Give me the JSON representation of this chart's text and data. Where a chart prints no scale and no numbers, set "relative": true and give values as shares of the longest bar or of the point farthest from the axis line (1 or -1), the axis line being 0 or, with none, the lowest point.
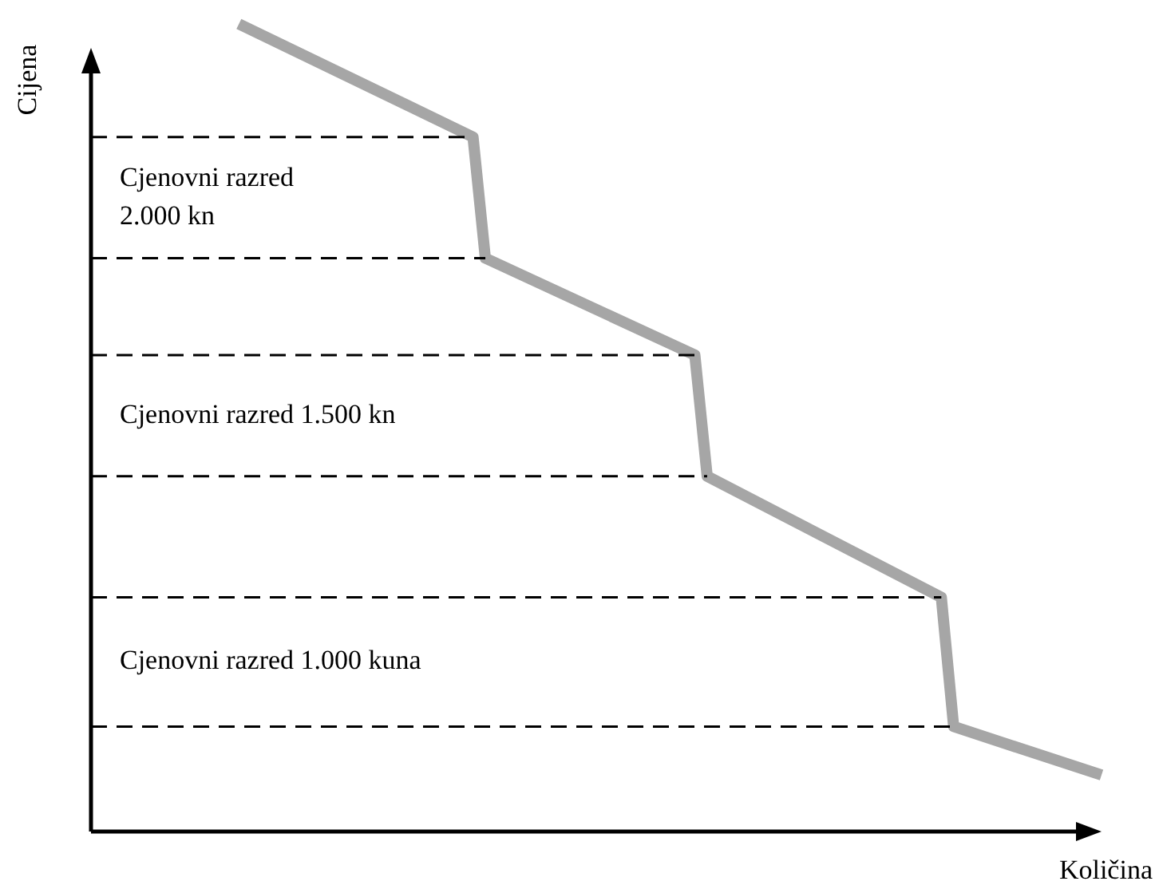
{
  "chart_data": {
    "type": "line",
    "relative": true,
    "xlabel": "Količina",
    "ylabel": "Cijena",
    "marker": "none",
    "line_style": "solid",
    "categories": [
      null,
      null,
      null,
      null,
      null,
      null,
      null,
      null,
      null,
      null,
      null,
      null,
      null,
      null,
      null,
      null,
      null,
      null,
      null,
      null,
      null,
      null,
      null,
      null,
      null,
      null,
      null,
      null,
      null,
      null,
      null,
      null,
      null,
      null,
      null,
      null,
      null,
      null,
      null,
      null,
      null,
      null,
      null,
      null,
      null,
      null,
      null,
      null,
      null,
      null,
      null,
      null,
      null,
      null,
      null,
      null,
      null,
      null,
      null,
      null,
      null,
      null,
      null,
      null,
      null,
      null,
      null,
      null,
      null,
      null,
      null,
      null,
      null,
      null,
      null,
      null,
      null,
      null,
      null,
      null,
      null,
      null,
      null
    ],
    "series": [
      {
        "color": "#a6a6a6",
        "values": [
          null,
          null,
          null,
          null,
          null,
          null,
          null,
          null,
          null,
          null,
          null,
          null,
          1,
          null,
          null,
          null,
          null,
          null,
          null,
          null,
          null,
          null,
          null,
          null,
          null,
          null,
          null,
          null,
          null,
          null,
          null,
          0.86,
          0.71,
          null,
          null,
          null,
          null,
          null,
          null,
          null,
          null,
          null,
          null,
          null,
          null,
          null,
          null,
          null,
          null,
          0.59,
          0.44,
          null,
          null,
          null,
          null,
          null,
          null,
          null,
          null,
          null,
          null,
          null,
          null,
          null,
          null,
          null,
          null,
          null,
          null,
          0.29,
          0.13,
          null,
          null,
          null,
          null,
          null,
          null,
          null,
          null,
          null,
          null,
          null,
          0.07
        ]
      }
    ],
    "ref_lines": [
      {
        "axis": "y",
        "value": 0.86,
        "label": "Cjenovni razred 2.000 kn",
        "color": "#000000",
        "line_style": "dashed"
      },
      {
        "axis": "y",
        "value": 0.71,
        "color": "#000000",
        "line_style": "dashed"
      },
      {
        "axis": "y",
        "value": 0.59,
        "label": "Cjenovni razred 1.500 kn",
        "color": "#000000",
        "line_style": "dashed"
      },
      {
        "axis": "y",
        "value": 0.44,
        "color": "#000000",
        "line_style": "dashed"
      },
      {
        "axis": "y",
        "value": 0.29,
        "label": "Cjenovni razred 1.000 kuna",
        "color": "#000000",
        "line_style": "dashed"
      },
      {
        "axis": "y",
        "value": 0.13,
        "color": "#000000",
        "line_style": "dashed"
      }
    ]
  }
}
